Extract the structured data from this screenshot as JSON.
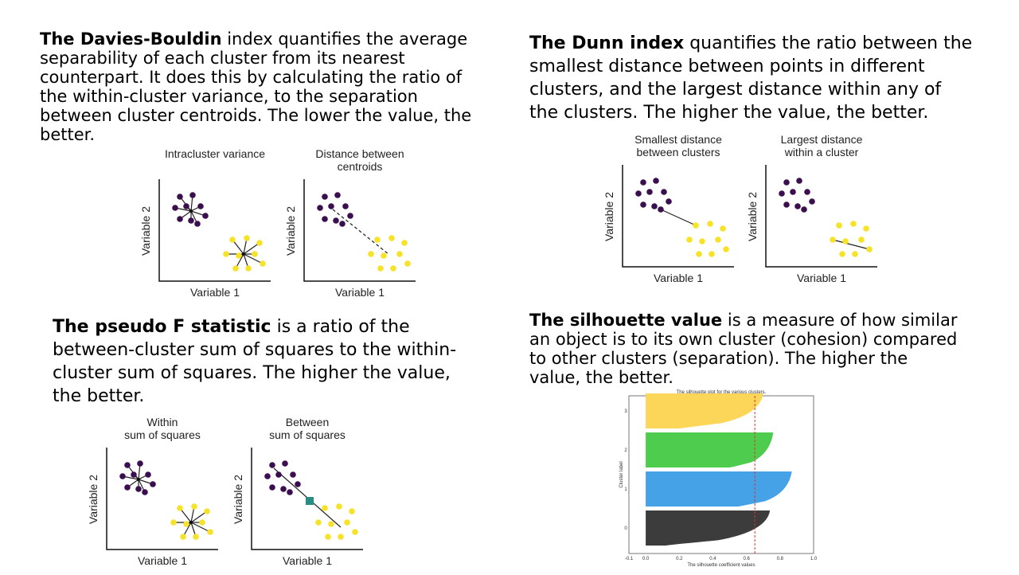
{
  "sections": {
    "davies": {
      "term": "The Davies-Bouldin",
      "text": " index quantifies the average separability of each cluster from its nearest counterpart. It does this by calculating the ratio of the within-cluster variance, to the separation between cluster centroids. The lower the value, the better.",
      "fig_left_title": [
        "Intracluster variance"
      ],
      "fig_right_title": [
        "Distance between",
        "centroids"
      ],
      "xlabel": "Variable 1",
      "ylabel": "Variable 2"
    },
    "dunn": {
      "term": "The Dunn index",
      "text": " quantifies the ratio between the smallest distance between points in different clusters, and the largest distance within any of the clusters. The higher the value, the better.",
      "fig_left_title": [
        "Smallest distance",
        "between clusters"
      ],
      "fig_right_title": [
        "Largest distance",
        "within a cluster"
      ],
      "xlabel": "Variable 1",
      "ylabel": "Variable 2"
    },
    "pseudof": {
      "term": "The pseudo F statistic",
      "text": " is a ratio of the between-cluster sum of squares to the within-cluster sum of squares. The higher the value, the better.",
      "fig_left_title": [
        "Within",
        "sum of squares"
      ],
      "fig_right_title": [
        "Between",
        "sum of squares"
      ],
      "xlabel": "Variable 1",
      "ylabel": "Variable 2"
    },
    "silhouette": {
      "term": "The silhouette value",
      "text": " is a measure of how similar an object is to its own cluster (cohesion) compared to other clusters (separation). The higher the value, the better."
    }
  },
  "colors": {
    "purple": "#3b0f4f",
    "yellow": "#f7e22a",
    "teal": "#2a8c84",
    "cluster0": "#3c3c3c",
    "cluster1": "#46a2e6",
    "cluster2": "#4dcc4d",
    "cluster3": "#fcd658",
    "avgline": "#e0312d"
  },
  "chart_data": {
    "type": "area",
    "title": "The silhouette plot for the various clusters.",
    "xlabel": "The silhouette coefficient values",
    "ylabel": "Cluster label",
    "xlim": [
      -0.1,
      1.0
    ],
    "xticks": [
      "-0.1",
      "0.0",
      "0.2",
      "0.4",
      "0.6",
      "0.8",
      "1.0"
    ],
    "yticks": [
      "0",
      "1",
      "2",
      "3"
    ],
    "average_silhouette": 0.65,
    "series": [
      {
        "cluster": "0",
        "max": 0.74,
        "min": 0.12
      },
      {
        "cluster": "1",
        "max": 0.87,
        "min": 0.55
      },
      {
        "cluster": "2",
        "max": 0.76,
        "min": 0.5
      },
      {
        "cluster": "3",
        "max": 0.7,
        "min": 0.2
      }
    ]
  }
}
